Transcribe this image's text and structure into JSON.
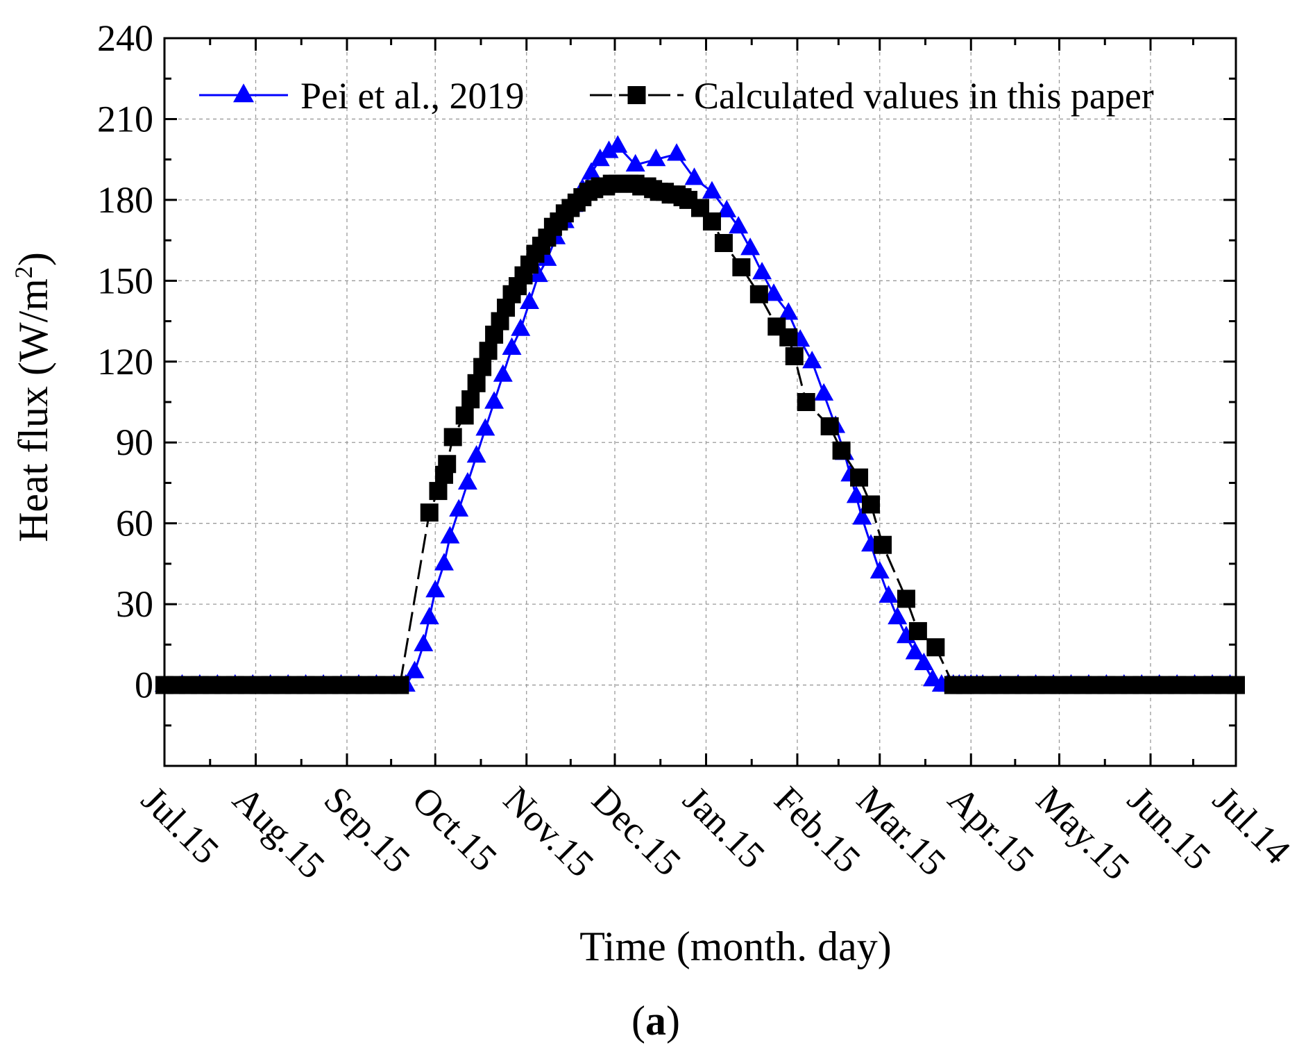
{
  "chart_data": {
    "type": "scatter",
    "title": "",
    "caption": "(a)",
    "xlabel": "Time (month. day)",
    "ylabel": "Heat flux (W/m",
    "ylabel_sup": "2",
    "ylabel_end": ")",
    "ylim": [
      -30,
      240
    ],
    "yticks": [
      0,
      30,
      60,
      90,
      120,
      150,
      180,
      210,
      240
    ],
    "xlim": [
      0,
      364
    ],
    "x_unit": "days since Jul.15",
    "xticks": [
      {
        "label": "Jul.15",
        "day": 0
      },
      {
        "label": "Aug.15",
        "day": 31
      },
      {
        "label": "Sep.15",
        "day": 62
      },
      {
        "label": "Oct.15",
        "day": 92
      },
      {
        "label": "Nov.15",
        "day": 123
      },
      {
        "label": "Dec.15",
        "day": 153
      },
      {
        "label": "Jan.15",
        "day": 184
      },
      {
        "label": "Feb.15",
        "day": 215
      },
      {
        "label": "Mar.15",
        "day": 243
      },
      {
        "label": "Apr.15",
        "day": 274
      },
      {
        "label": "May.15",
        "day": 304
      },
      {
        "label": "Jun.15",
        "day": 335
      },
      {
        "label": "Jul.14",
        "day": 364
      }
    ],
    "grid": true,
    "legend": {
      "placement": "top",
      "layout": "horizontal"
    },
    "series": [
      {
        "name": "Pei et al., 2019",
        "marker": "triangle",
        "color": "#0000ff",
        "x": [
          0,
          6,
          12,
          18,
          24,
          30,
          36,
          42,
          48,
          54,
          60,
          66,
          72,
          78,
          82,
          85,
          88,
          90,
          92,
          95,
          97,
          100,
          103,
          106,
          109,
          112,
          115,
          118,
          121,
          124,
          127,
          130,
          133,
          136,
          139,
          142,
          145,
          148,
          151,
          154,
          160,
          167,
          174,
          180,
          186,
          191,
          195,
          199,
          203,
          207,
          212,
          216,
          220,
          224,
          228,
          231,
          233,
          235,
          237,
          240,
          243,
          246,
          249,
          252,
          255,
          258,
          261,
          264,
          266,
          268,
          270,
          272,
          274,
          276,
          278,
          284,
          290,
          296,
          302,
          308,
          314,
          320,
          326,
          332,
          338,
          344,
          350,
          356,
          362
        ],
        "y": [
          0,
          0,
          0,
          0,
          0,
          0,
          0,
          0,
          0,
          0,
          0,
          0,
          0,
          0,
          0,
          5,
          15,
          25,
          35,
          45,
          55,
          65,
          75,
          85,
          95,
          105,
          115,
          125,
          132,
          142,
          152,
          158,
          166,
          172,
          178,
          184,
          190,
          195,
          198,
          200,
          193,
          195,
          197,
          188,
          183,
          176,
          170,
          162,
          153,
          145,
          138,
          128,
          120,
          108,
          96,
          86,
          78,
          70,
          62,
          52,
          42,
          33,
          25,
          18,
          12,
          8,
          2,
          0,
          0,
          0,
          0,
          0,
          0,
          0,
          0,
          0,
          0,
          0,
          0,
          0,
          0,
          0,
          0,
          0,
          0,
          0,
          0,
          0,
          0
        ],
        "y_override": null
      },
      {
        "name": "Calculated values in this paper",
        "marker": "square",
        "color": "#000000",
        "x": [
          0,
          4,
          8,
          12,
          16,
          20,
          24,
          28,
          32,
          36,
          40,
          44,
          48,
          52,
          56,
          60,
          64,
          68,
          72,
          76,
          80,
          90,
          93,
          95,
          96,
          98,
          102,
          104,
          106,
          108,
          110,
          112,
          114,
          116,
          118,
          120,
          122,
          124,
          126,
          128,
          130,
          132,
          134,
          136,
          138,
          140,
          142,
          144,
          146,
          148,
          150,
          152,
          154,
          156,
          158,
          160,
          162,
          164,
          166,
          168,
          170,
          172,
          174,
          176,
          178,
          182,
          186,
          190,
          196,
          202,
          208,
          212,
          214,
          218,
          226,
          230,
          236,
          240,
          244,
          252,
          256,
          262,
          268,
          270,
          272,
          276,
          280,
          284,
          288,
          292,
          296,
          300,
          304,
          308,
          312,
          316,
          320,
          324,
          328,
          332,
          336,
          340,
          344,
          348,
          352,
          356,
          360,
          364
        ],
        "y": [
          0,
          0,
          0,
          0,
          0,
          0,
          0,
          0,
          0,
          0,
          0,
          0,
          0,
          0,
          0,
          0,
          0,
          0,
          0,
          0,
          0,
          64,
          72,
          78,
          82,
          92,
          100,
          106,
          112,
          118,
          124,
          130,
          135,
          140,
          145,
          148,
          152,
          156,
          160,
          163,
          166,
          170,
          172,
          175,
          177,
          179,
          181,
          183,
          184,
          185,
          185,
          186,
          186,
          186,
          186,
          186,
          185,
          185,
          184,
          183,
          183,
          182,
          182,
          181,
          180,
          177,
          172,
          164,
          155,
          145,
          133,
          129,
          122,
          105,
          96,
          87,
          77,
          67,
          52,
          32,
          20,
          14,
          0,
          0,
          0,
          0,
          0,
          0,
          0,
          0,
          0,
          0,
          0,
          0,
          0,
          0,
          0,
          0,
          0,
          0,
          0,
          0,
          0,
          0,
          0,
          0,
          0,
          0
        ]
      }
    ]
  }
}
